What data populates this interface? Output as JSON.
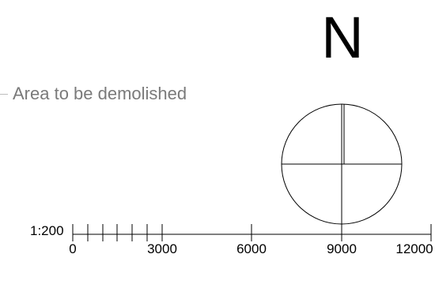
{
  "north_arrow": {
    "letter": "N",
    "icon": "north-arrow-icon"
  },
  "legend": {
    "label": "Area to be demolished",
    "swatch_color": "#bdbdbd"
  },
  "scale_bar": {
    "ratio": "1:200",
    "labels": [
      "0",
      "3000",
      "6000",
      "9000",
      "12000"
    ],
    "minor_divisions_in_first_segment": 6
  }
}
